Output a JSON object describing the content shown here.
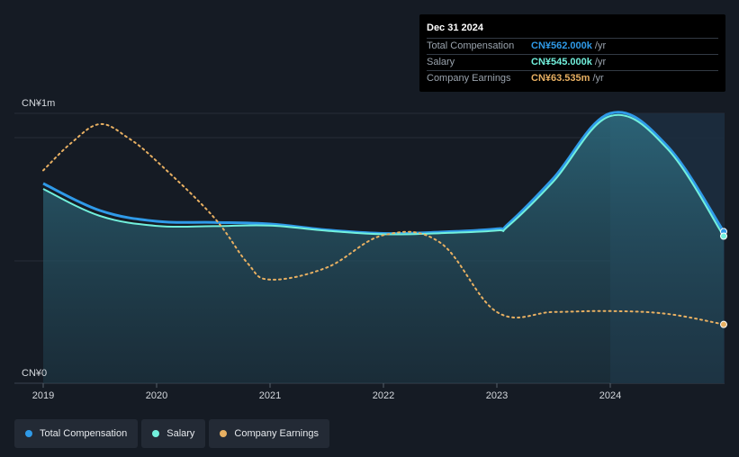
{
  "tooltip": {
    "date": "Dec 31 2024",
    "rows": [
      {
        "label": "Total Compensation",
        "value": "CN¥562.000k",
        "unit": "/yr",
        "color": "#2f9ae8"
      },
      {
        "label": "Salary",
        "value": "CN¥545.000k",
        "unit": "/yr",
        "color": "#72f0dc"
      },
      {
        "label": "Company Earnings",
        "value": "CN¥63.535m",
        "unit": "/yr",
        "color": "#e8b062"
      }
    ]
  },
  "legend": [
    {
      "label": "Total Compensation",
      "color": "#2f9ae8"
    },
    {
      "label": "Salary",
      "color": "#72f0dc"
    },
    {
      "label": "Company Earnings",
      "color": "#e8b062"
    }
  ],
  "chart_data": {
    "type": "line",
    "ylabel_top": "CN¥1m",
    "ylabel_bottom": "CN¥0",
    "ylim_compensation": [
      0,
      1000
    ],
    "x_ticks": [
      "2019",
      "2020",
      "2021",
      "2022",
      "2023",
      "2024"
    ],
    "xlim": [
      2019.0,
      2025.0
    ],
    "series": [
      {
        "name": "Total Compensation",
        "unit": "CN¥k",
        "color": "#2f9ae8",
        "x": [
          2019.0,
          2019.5,
          2020.0,
          2020.5,
          2021.0,
          2021.5,
          2022.0,
          2022.5,
          2023.0,
          2023.1,
          2023.5,
          2024.0,
          2024.5,
          2025.0
        ],
        "values": [
          740,
          640,
          600,
          596,
          590,
          568,
          555,
          560,
          572,
          590,
          760,
          1000,
          880,
          562
        ]
      },
      {
        "name": "Salary",
        "unit": "CN¥k",
        "color": "#72f0dc",
        "x": [
          2019.0,
          2019.5,
          2020.0,
          2020.5,
          2021.0,
          2021.5,
          2022.0,
          2022.5,
          2023.0,
          2023.1,
          2023.5,
          2024.0,
          2024.5,
          2025.0
        ],
        "values": [
          720,
          620,
          583,
          582,
          584,
          565,
          552,
          556,
          566,
          582,
          748,
          990,
          870,
          545
        ]
      },
      {
        "name": "Company Earnings",
        "unit": "CN¥m",
        "color": "#e8b062",
        "x": [
          2019.0,
          2019.25,
          2019.5,
          2019.75,
          2020.0,
          2020.5,
          2020.8,
          2021.0,
          2021.5,
          2022.0,
          2022.5,
          2023.0,
          2023.5,
          2024.0,
          2024.5,
          2025.0
        ],
        "values": [
          230,
          260,
          280,
          265,
          240,
          180,
          130,
          112,
          125,
          160,
          152,
          77,
          77,
          78,
          75,
          63.535
        ]
      }
    ],
    "earnings_ylim": [
      0,
      280
    ]
  }
}
